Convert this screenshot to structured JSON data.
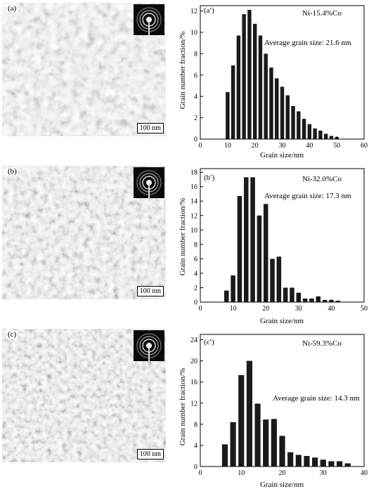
{
  "figure": {
    "panels": [
      {
        "micrograph_label": "(a)",
        "scale_bar": "100 nm",
        "chart_label": "(a′)",
        "composition": "Ni-15.4%Co",
        "average_text": "Average grain size: 21.6 nm",
        "ylabel": "Grain number fraction/%",
        "xlabel": "Grain size/nm",
        "x_ticks": [
          "0",
          "10",
          "20",
          "30",
          "40",
          "50",
          "60"
        ],
        "y_ticks": [
          "0",
          "2",
          "4",
          "6",
          "8",
          "10",
          "12"
        ]
      },
      {
        "micrograph_label": "(b)",
        "scale_bar": "100 nm",
        "chart_label": "(b′)",
        "composition": "Ni-32.0%Co",
        "average_text": "Average grain size: 17.3 nm",
        "ylabel": "Grain number fraction/%",
        "xlabel": "Grain size/nm",
        "x_ticks": [
          "0",
          "10",
          "20",
          "30",
          "40",
          "50"
        ],
        "y_ticks": [
          "0",
          "2",
          "4",
          "6",
          "8",
          "10",
          "12",
          "14",
          "16",
          "18"
        ]
      },
      {
        "micrograph_label": "(c)",
        "scale_bar": "100 nm",
        "chart_label": "(c′)",
        "composition": "Ni-59.3%Co",
        "average_text": "Average grain size: 14.3 nm",
        "ylabel": "Grain number fraction/%",
        "xlabel": "Grain size/nm",
        "x_ticks": [
          "0",
          "10",
          "20",
          "30",
          "40"
        ],
        "y_ticks": [
          "0",
          "4",
          "8",
          "12",
          "16",
          "20",
          "24"
        ]
      }
    ]
  },
  "chart_data": [
    {
      "type": "bar",
      "xlabel": "Grain size/nm",
      "ylabel": "Grain number fraction/%",
      "xlim": [
        0,
        60
      ],
      "ylim": [
        0,
        12.5
      ],
      "x": [
        10,
        12,
        14,
        16,
        18,
        20,
        22,
        24,
        26,
        28,
        30,
        32,
        34,
        36,
        38,
        40,
        42,
        44,
        46,
        48,
        50
      ],
      "values": [
        4.4,
        6.9,
        9.7,
        11.7,
        12.1,
        10.8,
        9.7,
        8.0,
        6.7,
        5.7,
        4.9,
        4.1,
        3.1,
        2.6,
        1.9,
        1.4,
        1.0,
        0.8,
        0.5,
        0.3,
        0.2
      ],
      "bar_width": 1.4,
      "grid": false
    },
    {
      "type": "bar",
      "xlabel": "Grain size/nm",
      "ylabel": "Grain number fraction/%",
      "xlim": [
        0,
        50
      ],
      "ylim": [
        0,
        18.5
      ],
      "x": [
        8,
        10,
        12,
        14,
        16,
        18,
        20,
        22,
        24,
        26,
        28,
        30,
        32,
        34,
        36,
        38,
        40,
        42
      ],
      "values": [
        1.6,
        3.7,
        14.7,
        17.3,
        17.3,
        12.0,
        13.6,
        6.0,
        6.3,
        2.0,
        2.0,
        1.3,
        0.5,
        0.5,
        0.8,
        0.3,
        0.3,
        0.2
      ],
      "bar_width": 1.4,
      "grid": false
    },
    {
      "type": "bar",
      "xlabel": "Grain size/nm",
      "ylabel": "Grain number fraction/%",
      "xlim": [
        0,
        40
      ],
      "ylim": [
        0,
        25
      ],
      "x": [
        6,
        8,
        10,
        12,
        14,
        16,
        18,
        20,
        22,
        24,
        26,
        28,
        30,
        32,
        34,
        36
      ],
      "values": [
        4.2,
        8.4,
        17.3,
        20.0,
        11.9,
        8.9,
        9.0,
        5.8,
        2.7,
        2.2,
        2.0,
        1.7,
        1.3,
        1.0,
        1.0,
        0.6
      ],
      "bar_width": 1.4,
      "grid": false
    }
  ]
}
